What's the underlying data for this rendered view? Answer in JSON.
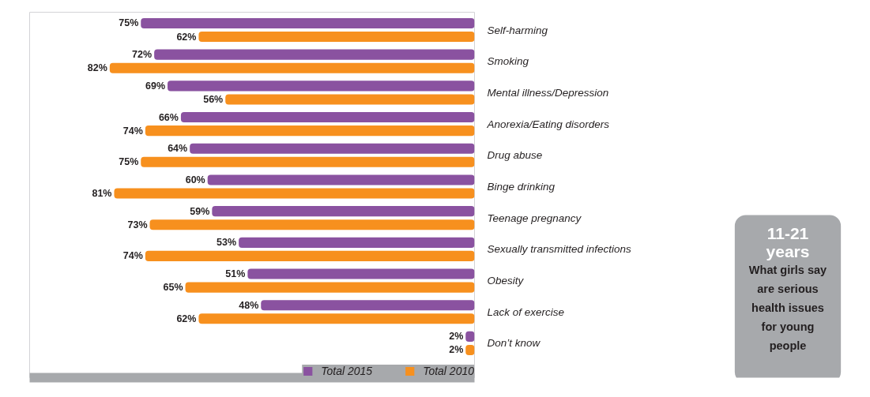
{
  "chart_data": {
    "type": "bar",
    "orientation": "horizontal",
    "title": "11-21 years",
    "subtitle": "What girls say are serious health issues for young people",
    "categories": [
      "Self-harming",
      "Smoking",
      "Mental illness/Depression",
      "Anorexia/Eating disorders",
      "Drug abuse",
      "Binge drinking",
      "Teenage pregnancy",
      "Sexually transmitted infections",
      "Obesity",
      "Lack of exercise",
      "Don’t know"
    ],
    "series": [
      {
        "name": "Total 2015",
        "color": "#8a52a0",
        "values": [
          75,
          72,
          69,
          66,
          64,
          60,
          59,
          53,
          51,
          48,
          2
        ],
        "value_labels": [
          "75%",
          "72%",
          "69%",
          "66%",
          "64%",
          "60%",
          "59%",
          "53%",
          "51%",
          "48%",
          "2%"
        ]
      },
      {
        "name": "Total 2010",
        "color": "#f7901e",
        "values": [
          62,
          82,
          56,
          74,
          75,
          81,
          73,
          74,
          65,
          62,
          2
        ],
        "value_labels": [
          "62%",
          "82%",
          "56%",
          "74%",
          "75%",
          "81%",
          "73%",
          "74%",
          "65%",
          "62%",
          "2%"
        ]
      }
    ],
    "xlim": [
      100,
      0
    ],
    "tick_labels": "y",
    "legend": "bottom right"
  }
}
